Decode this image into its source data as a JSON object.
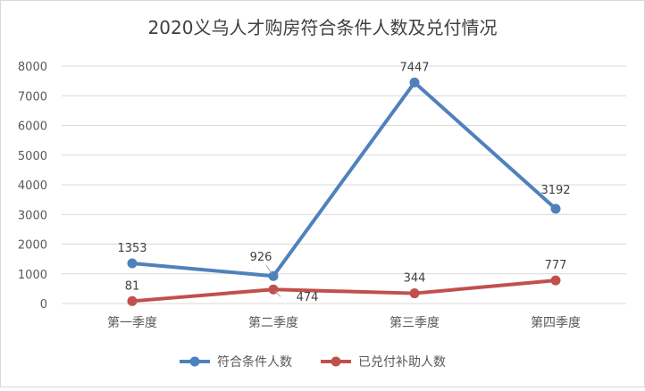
{
  "chart_data": {
    "type": "line",
    "title": "2020义乌人才购房符合条件人数及兑付情况",
    "categories": [
      "第一季度",
      "第二季度",
      "第三季度",
      "第四季度"
    ],
    "ylim": [
      0,
      8000
    ],
    "yticks": [
      0,
      1000,
      2000,
      3000,
      4000,
      5000,
      6000,
      7000,
      8000
    ],
    "grid": true,
    "legend_position": "bottom",
    "series": [
      {
        "name": "符合条件人数",
        "values": [
          1353,
          926,
          7447,
          3192
        ],
        "color": "#4f81bd"
      },
      {
        "name": "已兑付补助人数",
        "values": [
          81,
          474,
          344,
          777
        ],
        "color": "#c0504d"
      }
    ]
  }
}
